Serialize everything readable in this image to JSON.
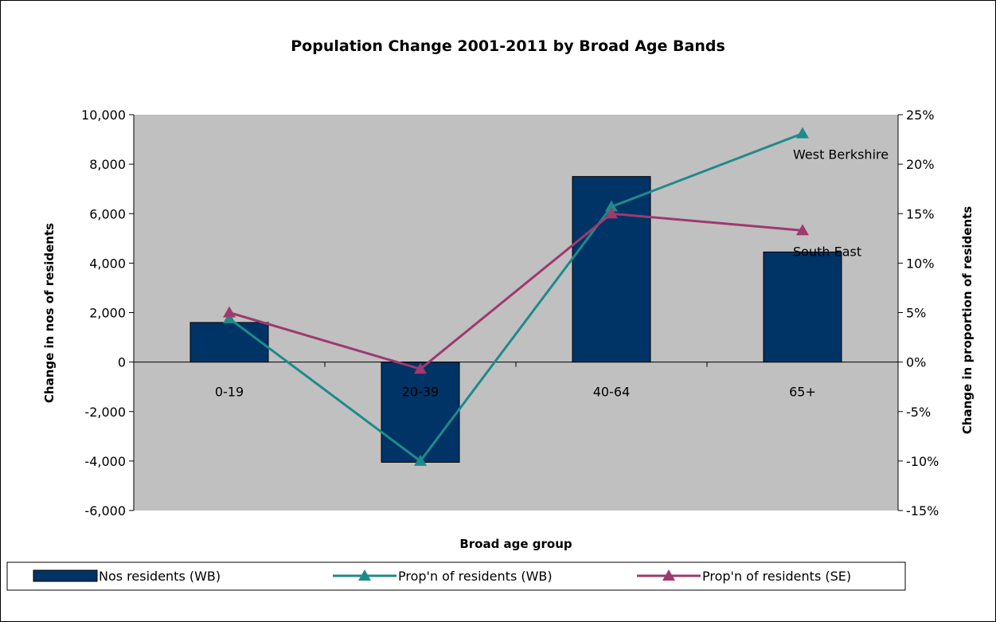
{
  "chart_data": {
    "type": "bar",
    "title": "Population Change 2001-2011 by Broad Age Bands",
    "xlabel": "Broad age group",
    "ylabel": "Change in nos of residents",
    "y2label": "Change in proportion of residents",
    "categories": [
      "0-19",
      "20-39",
      "40-64",
      "65+"
    ],
    "ylim": [
      -6000,
      10000
    ],
    "y_ticks": [
      -6000,
      -4000,
      -2000,
      0,
      2000,
      4000,
      6000,
      8000,
      10000
    ],
    "y_tick_labels": [
      "-6,000",
      "-4,000",
      "-2,000",
      "0",
      "2,000",
      "4,000",
      "6,000",
      "8,000",
      "10,000"
    ],
    "y2lim": [
      -15,
      25
    ],
    "y2_ticks": [
      -15,
      -10,
      -5,
      0,
      5,
      10,
      15,
      20,
      25
    ],
    "y2_tick_labels": [
      "-15%",
      "-10%",
      "-5%",
      "0%",
      "5%",
      "10%",
      "15%",
      "20%",
      "25%"
    ],
    "series": [
      {
        "name": "Nos residents (WB)",
        "type": "bar",
        "axis": "left",
        "color": "#003366",
        "values": [
          1600,
          -4050,
          7500,
          4450
        ]
      },
      {
        "name": "Prop'n of residents (WB)",
        "type": "line",
        "axis": "right",
        "marker": "triangle",
        "color": "#1f8a8a",
        "values": [
          4.4,
          -10.0,
          15.7,
          23.1
        ]
      },
      {
        "name": "Prop'n of residents (SE)",
        "type": "line",
        "axis": "right",
        "marker": "triangle",
        "color": "#9e3a6e",
        "values": [
          5.0,
          -0.7,
          15.0,
          13.3
        ]
      }
    ],
    "annotations": [
      {
        "text": "West Berkshire",
        "category": "65+",
        "value": 23.1,
        "axis": "right"
      },
      {
        "text": "South East",
        "category": "65+",
        "value": 13.3,
        "axis": "right"
      }
    ],
    "plot_background": "#c0c0c0",
    "grid": false,
    "legend_position": "bottom"
  }
}
